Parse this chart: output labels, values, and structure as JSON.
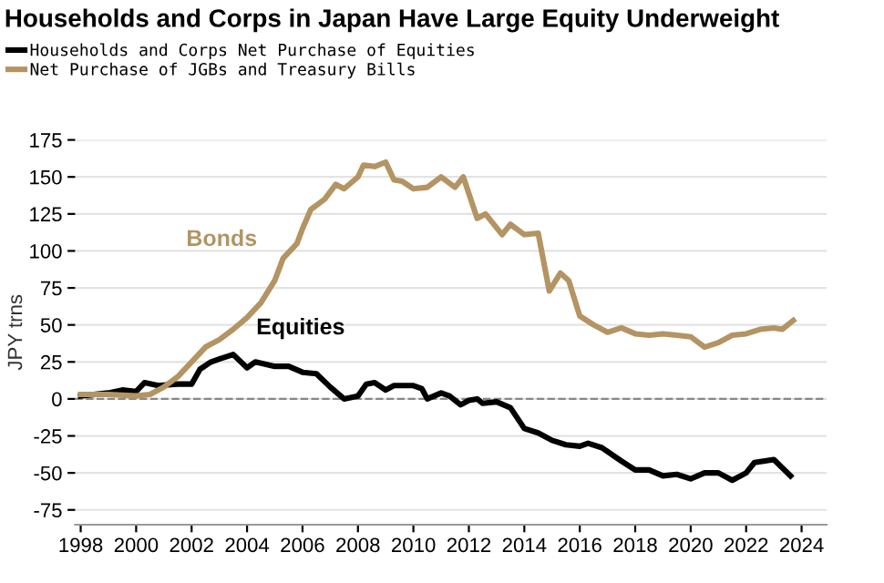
{
  "chart_data": {
    "type": "line",
    "title": "Households and Corps in Japan Have Large Equity Underweight",
    "ylabel": "JPY trns",
    "series": [
      {
        "name": "Households and Corps Net Purchase of Equities",
        "color": "#000000",
        "x": [
          1998,
          1999,
          1999.5,
          2000,
          2000.3,
          2000.8,
          2001.5,
          2002,
          2002.3,
          2002.7,
          2003,
          2003.5,
          2004,
          2004.3,
          2005,
          2005.5,
          2006,
          2006.5,
          2007,
          2007.5,
          2008,
          2008.3,
          2008.6,
          2009,
          2009.3,
          2010,
          2010.3,
          2010.5,
          2011,
          2011.3,
          2011.7,
          2012,
          2012.3,
          2012.5,
          2013,
          2013.5,
          2014,
          2014.5,
          2015,
          2015.5,
          2016,
          2016.3,
          2016.8,
          2017.5,
          2018,
          2018.5,
          2019,
          2019.5,
          2020,
          2020.5,
          2021,
          2021.5,
          2022,
          2022.3,
          2023,
          2023.6
        ],
        "values": [
          2,
          4,
          6,
          5,
          11,
          9,
          10,
          10,
          20,
          25,
          27,
          30,
          21,
          25,
          22,
          22,
          18,
          17,
          8,
          0,
          2,
          10,
          11,
          6,
          9,
          9,
          7,
          0,
          4,
          2,
          -4,
          -1,
          0,
          -3,
          -2,
          -6,
          -20,
          -23,
          -28,
          -31,
          -32,
          -30,
          -33,
          -42,
          -48,
          -48,
          -52,
          -51,
          -54,
          -50,
          -50,
          -55,
          -50,
          -43,
          -41,
          -52
        ]
      },
      {
        "name": "Net Purchase of JGBs and Treasury Bills",
        "color": "#b39462",
        "x": [
          1998,
          1999,
          2000,
          2000.5,
          2001,
          2001.5,
          2002,
          2002.5,
          2003,
          2003.5,
          2004,
          2004.5,
          2005,
          2005.3,
          2005.8,
          2006,
          2006.3,
          2006.8,
          2007.2,
          2007.5,
          2008,
          2008.2,
          2008.6,
          2009,
          2009.3,
          2009.6,
          2010,
          2010.5,
          2011,
          2011.5,
          2011.8,
          2012.3,
          2012.6,
          2013.2,
          2013.5,
          2014,
          2014.5,
          2014.9,
          2015.3,
          2015.6,
          2016,
          2016.5,
          2017,
          2017.5,
          2018,
          2018.5,
          2019,
          2019.5,
          2020,
          2020.5,
          2021,
          2021.5,
          2022,
          2022.5,
          2023,
          2023.3,
          2023.7
        ],
        "values": [
          3,
          3,
          2,
          3,
          8,
          15,
          25,
          35,
          40,
          47,
          55,
          65,
          80,
          95,
          105,
          115,
          128,
          135,
          145,
          142,
          150,
          158,
          157,
          160,
          148,
          147,
          142,
          143,
          150,
          143,
          150,
          122,
          125,
          111,
          118,
          111,
          112,
          73,
          85,
          80,
          56,
          50,
          45,
          48,
          44,
          43,
          44,
          43,
          42,
          35,
          38,
          43,
          44,
          47,
          48,
          47,
          53
        ]
      }
    ],
    "annotations": [
      "Bonds",
      "Equities"
    ],
    "xlim": [
      1997.8,
      2024.9
    ],
    "xticks": [
      1998,
      2000,
      2002,
      2004,
      2006,
      2008,
      2010,
      2012,
      2014,
      2016,
      2018,
      2020,
      2022,
      2024
    ],
    "ylim": [
      -85,
      175
    ],
    "yticks": [
      -75,
      -50,
      -25,
      0,
      25,
      50,
      75,
      100,
      125,
      150,
      175
    ],
    "ref_lines": [
      {
        "axis": "y",
        "value": 0,
        "color": "#888888",
        "line_style": "dashed"
      }
    ],
    "grid": "y",
    "legend": "top left"
  }
}
